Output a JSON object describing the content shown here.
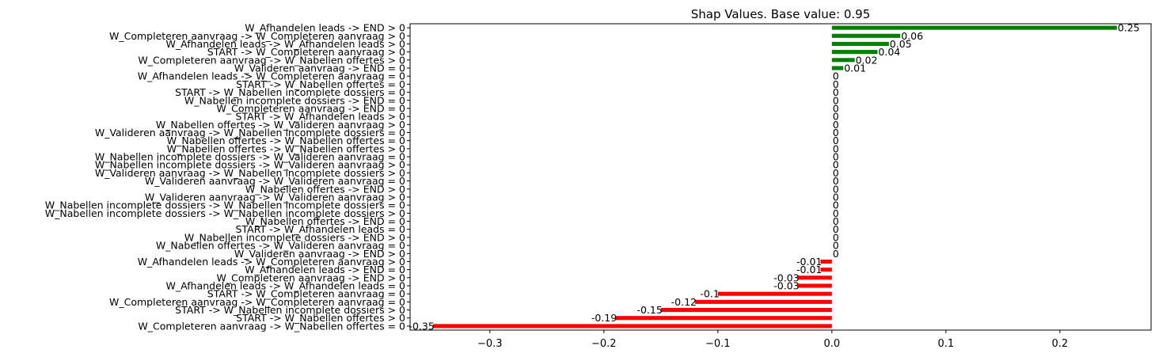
{
  "chart_data": {
    "type": "bar",
    "orientation": "horizontal",
    "title": "Shap Values. Base value: 0.95",
    "xlabel": "",
    "ylabel": "",
    "xlim": [
      -0.37,
      0.28
    ],
    "xticks": [
      -0.3,
      -0.2,
      -0.1,
      0.0,
      0.1,
      0.2
    ],
    "xtick_labels": [
      "−0.3",
      "−0.2",
      "−0.1",
      "0.0",
      "0.1",
      "0.2"
    ],
    "positive_color": "#008000",
    "negative_color": "#ff0000",
    "grid": false,
    "categories": [
      "W_Afhandelen leads -> END > 0",
      "W_Completeren aanvraag -> W_Completeren aanvraag > 0",
      "W_Afhandelen leads -> W_Afhandelen leads > 0",
      "START -> W_Completeren aanvraag > 0",
      "W_Completeren aanvraag -> W_Nabellen offertes > 0",
      "W_Valideren aanvraag -> END = 0",
      "W_Afhandelen leads -> W_Completeren aanvraag = 0",
      "START -> W_Nabellen offertes = 0",
      "START -> W_Nabellen incomplete dossiers = 0",
      "W_Nabellen incomplete dossiers -> END = 0",
      "W_Completeren aanvraag -> END = 0",
      "START -> W_Afhandelen leads > 0",
      "W_Nabellen offertes -> W_Valideren aanvraag > 0",
      "W_Valideren aanvraag -> W_Nabellen incomplete dossiers = 0",
      "W_Nabellen offertes -> W_Nabellen offertes = 0",
      "W_Nabellen offertes -> W_Nabellen offertes > 0",
      "W_Nabellen incomplete dossiers -> W_Valideren aanvraag = 0",
      "W_Nabellen incomplete dossiers -> W_Valideren aanvraag > 0",
      "W_Valideren aanvraag -> W_Nabellen incomplete dossiers > 0",
      "W_Valideren aanvraag -> W_Valideren aanvraag = 0",
      "W_Nabellen offertes -> END > 0",
      "W_Valideren aanvraag -> W_Valideren aanvraag > 0",
      "W_Nabellen incomplete dossiers -> W_Nabellen incomplete dossiers = 0",
      "W_Nabellen incomplete dossiers -> W_Nabellen incomplete dossiers > 0",
      "W_Nabellen offertes -> END = 0",
      "START -> W_Afhandelen leads = 0",
      "W_Nabellen incomplete dossiers -> END > 0",
      "W_Nabellen offertes -> W_Valideren aanvraag = 0",
      "W_Valideren aanvraag -> END > 0",
      "W_Afhandelen leads -> W_Completeren aanvraag > 0",
      "W_Afhandelen leads -> END = 0",
      "W_Completeren aanvraag -> END > 0",
      "W_Afhandelen leads -> W_Afhandelen leads = 0",
      "START -> W_Completeren aanvraag = 0",
      "W_Completeren aanvraag -> W_Completeren aanvraag = 0",
      "START -> W_Nabellen incomplete dossiers > 0",
      "START -> W_Nabellen offertes > 0",
      "W_Completeren aanvraag -> W_Nabellen offertes = 0"
    ],
    "values": [
      0.25,
      0.06,
      0.05,
      0.04,
      0.02,
      0.01,
      0,
      0,
      0,
      0,
      0,
      0,
      0,
      0,
      0,
      0,
      0,
      0,
      0,
      0,
      0,
      0,
      0,
      0,
      0,
      0,
      0,
      0,
      0,
      -0.01,
      -0.01,
      -0.03,
      -0.03,
      -0.1,
      -0.12,
      -0.15,
      -0.19,
      -0.35
    ],
    "value_labels": [
      "0.25",
      "0.06",
      "0.05",
      "0.04",
      "0.02",
      "0.01",
      "0",
      "0",
      "0",
      "0",
      "0",
      "0",
      "0",
      "0",
      "0",
      "0",
      "0",
      "0",
      "0",
      "0",
      "0",
      "0",
      "0",
      "0",
      "0",
      "0",
      "0",
      "0",
      "0",
      "-0.01",
      "-0.01",
      "-0.03",
      "-0.03",
      "-0.1",
      "-0.12",
      "-0.15",
      "-0.19",
      "-0.35"
    ]
  }
}
